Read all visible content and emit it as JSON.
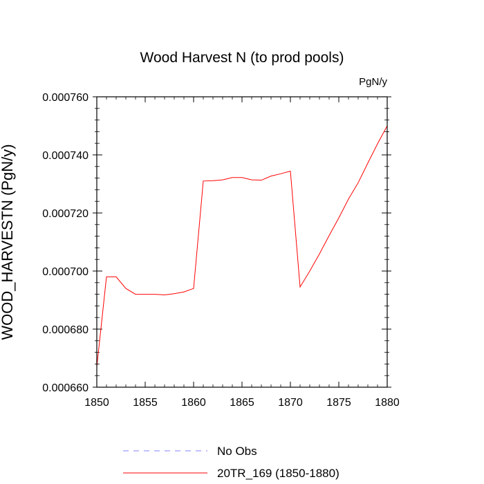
{
  "chart_data": {
    "type": "line",
    "title": "Wood Harvest N (to prod pools)",
    "units_label": "PgN/y",
    "xlabel": "",
    "ylabel": "WOOD_HARVESTN  (PgN/y)",
    "xlim": [
      1850,
      1880
    ],
    "ylim": [
      0.00066,
      0.00076
    ],
    "x_ticks": [
      1850,
      1855,
      1860,
      1865,
      1870,
      1875,
      1880
    ],
    "y_ticks": [
      0.00066,
      0.00068,
      0.0007,
      0.00072,
      0.00074,
      0.00076
    ],
    "x_tick_labels": [
      "1850",
      "1855",
      "1860",
      "1865",
      "1870",
      "1875",
      "1880"
    ],
    "y_tick_labels": [
      "0.000660",
      "0.000680",
      "0.000700",
      "0.000720",
      "0.000740",
      "0.000760"
    ],
    "grid": false,
    "legend_position": "bottom",
    "series": [
      {
        "name": "No Obs",
        "color": "#8080ff",
        "dash": "dashed",
        "x": [],
        "y": []
      },
      {
        "name": "20TR_169 (1850-1880)",
        "color": "#ff0000",
        "dash": "solid",
        "x": [
          1850,
          1851,
          1852,
          1853,
          1854,
          1855,
          1856,
          1857,
          1858,
          1859,
          1860,
          1861,
          1862,
          1863,
          1864,
          1865,
          1866,
          1867,
          1868,
          1869,
          1870,
          1871,
          1872,
          1873,
          1874,
          1875,
          1876,
          1877,
          1878,
          1879,
          1880
        ],
        "y": [
          0.000667,
          0.000698,
          0.000698,
          0.000694,
          0.000692,
          0.000692,
          0.000692,
          0.0006918,
          0.0006922,
          0.0006928,
          0.000694,
          0.000731,
          0.0007311,
          0.0007314,
          0.0007322,
          0.0007322,
          0.0007314,
          0.0007313,
          0.0007327,
          0.0007335,
          0.0007344,
          0.0006945,
          0.0007,
          0.0007059,
          0.0007122,
          0.0007183,
          0.0007248,
          0.0007304,
          0.0007372,
          0.0007438,
          0.00075
        ]
      }
    ]
  }
}
